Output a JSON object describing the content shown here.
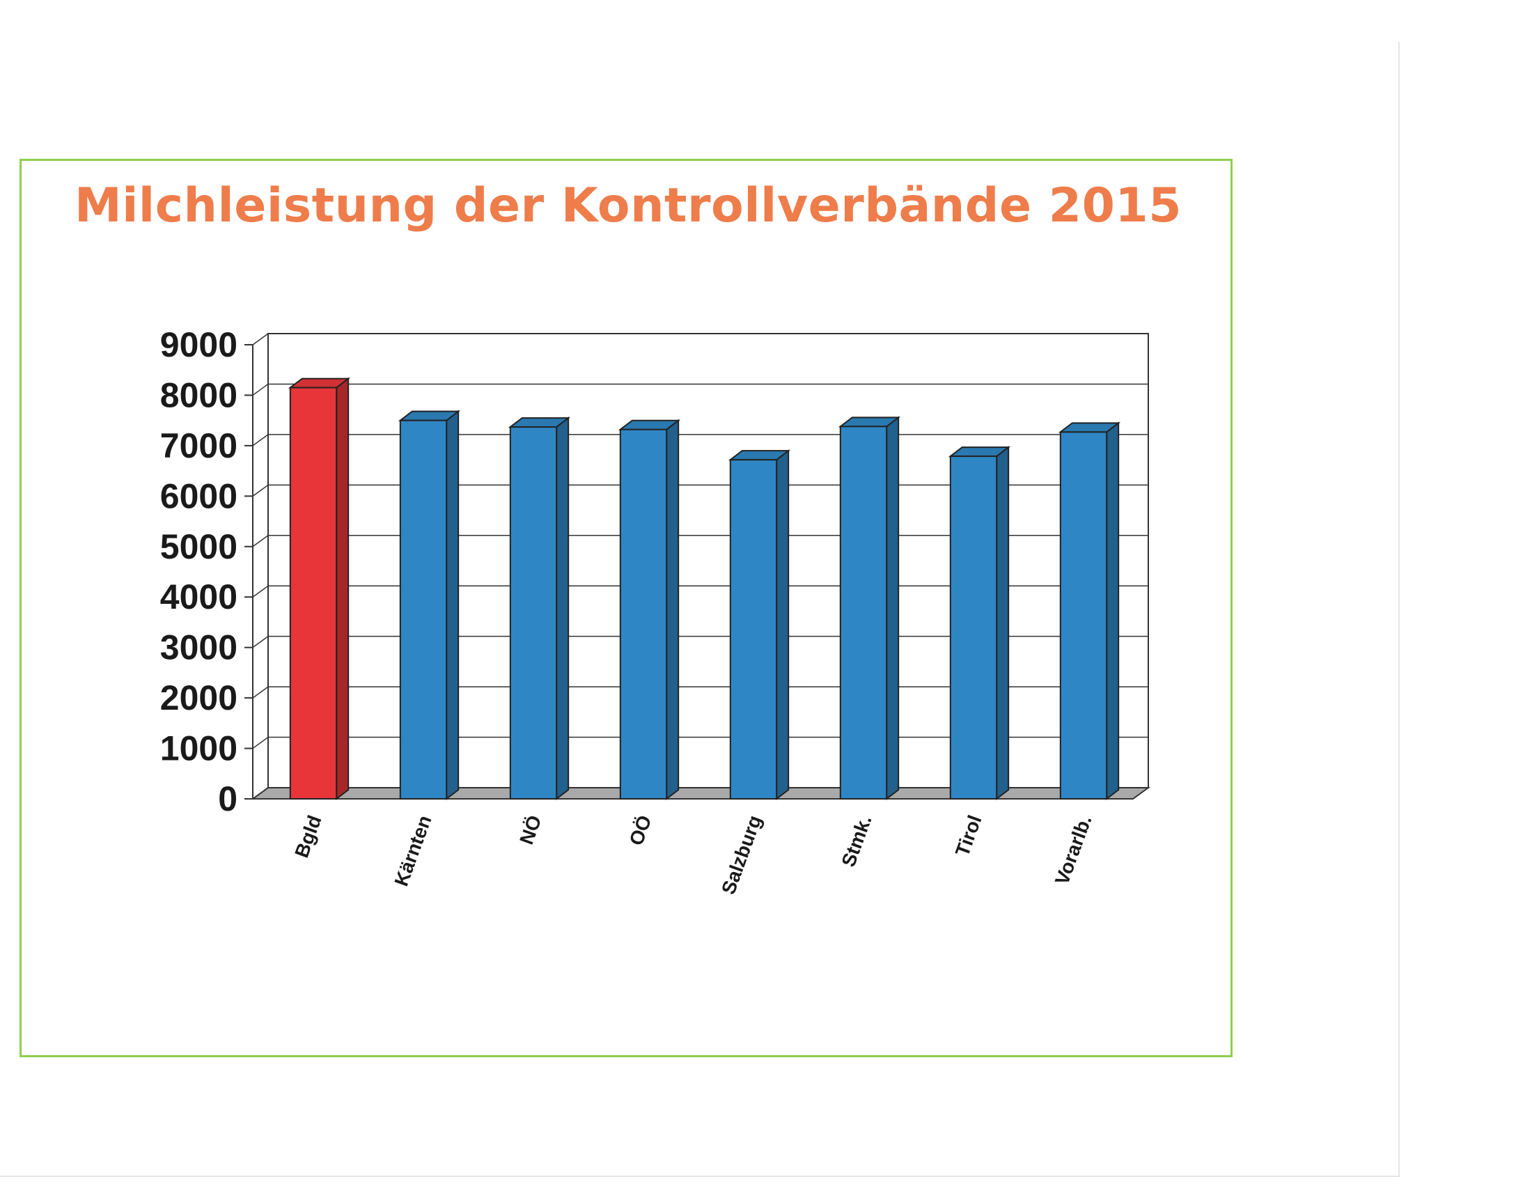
{
  "chart_data": {
    "type": "bar",
    "title": "Milchleistung der Kontrollverbände 2015",
    "categories": [
      "Bgld",
      "Kärnten",
      "NÖ",
      "OÖ",
      "Salzburg",
      "Stmk.",
      "Tirol",
      "Vorarlb."
    ],
    "values": [
      8150,
      7500,
      7370,
      7320,
      6720,
      7380,
      6790,
      7270
    ],
    "y_ticks": [
      "0",
      "1000",
      "2000",
      "3000",
      "4000",
      "5000",
      "6000",
      "7000",
      "8000",
      "9000"
    ],
    "ylim": [
      0,
      9000
    ],
    "xlabel": "",
    "ylabel": "",
    "grid": true,
    "style": "3d-column",
    "colors": {
      "highlight": "#e8353a",
      "default": "#2f86c4",
      "title": "#ee7d4b",
      "frame": "#8fcf4f"
    },
    "highlight_category": "Bgld"
  }
}
